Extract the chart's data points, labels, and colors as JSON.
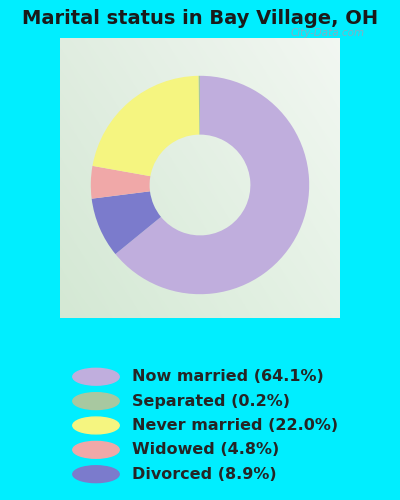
{
  "title": "Marital status in Bay Village, OH",
  "slices": [
    64.1,
    8.9,
    4.8,
    22.0,
    0.2
  ],
  "slice_order_labels": [
    "Now married",
    "Divorced",
    "Widowed",
    "Never married",
    "Separated"
  ],
  "colors_pie": [
    "#c0aedd",
    "#7b7bcc",
    "#f0a8a8",
    "#f5f580",
    "#a8c8a0"
  ],
  "labels": [
    "Now married (64.1%)",
    "Separated (0.2%)",
    "Never married (22.0%)",
    "Widowed (4.8%)",
    "Divorced (8.9%)"
  ],
  "legend_colors": [
    "#c0aedd",
    "#a8c8a0",
    "#f5f580",
    "#f0a8a8",
    "#7b7bcc"
  ],
  "bg_outer": "#00eeff",
  "title_fontsize": 14,
  "legend_fontsize": 11.5,
  "watermark": "City-Data.com",
  "start_angle": 90,
  "donut_width": 0.42
}
